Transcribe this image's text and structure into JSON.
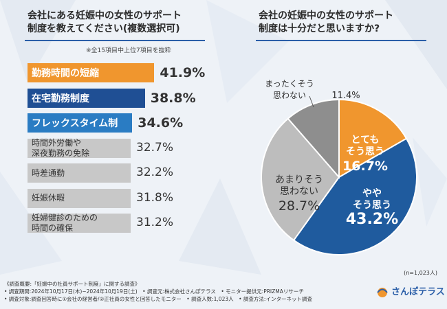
{
  "left_panel": {
    "title_line1": "会社にある妊娠中の女性のサポート",
    "title_line2": "制度を教えてください(複数選択可)",
    "note": "※全15項目中上位7項目を抜粋"
  },
  "right_panel": {
    "title_line1": "会社の妊娠中の女性のサポート",
    "title_line2": "制度は十分だと思いますか?",
    "sample": "(n=1,023人)"
  },
  "chart_data": [
    {
      "type": "bar",
      "orientation": "horizontal",
      "title": "会社にある妊娠中の女性のサポート制度を教えてください(複数選択可)",
      "categories": [
        "勤務時間の短縮",
        "在宅勤務制度",
        "フレックスタイム制",
        "時間外労働や深夜勤務の免除",
        "時差通勤",
        "妊娠休暇",
        "妊婦健診のための時間の確保"
      ],
      "category_lines": [
        [
          "勤務時間の短縮"
        ],
        [
          "在宅勤務制度"
        ],
        [
          "フレックスタイム制"
        ],
        [
          "時間外労働や",
          "深夜勤務の免除"
        ],
        [
          "時差通勤"
        ],
        [
          "妊娠休暇"
        ],
        [
          "妊婦健診のための",
          "時間の確保"
        ]
      ],
      "values": [
        41.9,
        38.8,
        34.6,
        32.7,
        32.2,
        31.8,
        31.2
      ],
      "value_labels": [
        "41.9%",
        "38.8%",
        "34.6%",
        "32.7%",
        "32.2%",
        "31.8%",
        "31.2%"
      ],
      "unit": "%",
      "colors": [
        "#f0962e",
        "#1f4f94",
        "#2a7cc3",
        "#c8c8c8",
        "#c8c8c8",
        "#c8c8c8",
        "#c8c8c8"
      ]
    },
    {
      "type": "pie",
      "title": "会社の妊娠中の女性のサポート制度は十分だと思いますか?",
      "labels": [
        "とてもそう思う",
        "ややそう思う",
        "あまりそう思わない",
        "まったくそう思わない"
      ],
      "label_lines": [
        [
          "とても",
          "そう思う"
        ],
        [
          "やや",
          "そう思う"
        ],
        [
          "あまりそう",
          "思わない"
        ],
        [
          "まったくそう",
          "思わない"
        ]
      ],
      "values": [
        16.7,
        43.2,
        28.7,
        11.4
      ],
      "value_labels": [
        "16.7%",
        "43.2%",
        "28.7%",
        "11.4%"
      ],
      "colors": [
        "#f0962e",
        "#1f5b9e",
        "#bdbdbd",
        "#8e8e8e"
      ]
    }
  ],
  "footer": {
    "line1": "《調査概要:「妊娠中の社員サポート制度」に関する調査》",
    "line2": "• 調査期間:2024年10月17日(木)~2024年10月19日(土)　• 調査元:株式会社さんぽテラス　• モニター提供元:PRIZMAリサーチ",
    "line3": "• 調査対象:調査回答時に①会社の経営者/②正社員の女性と回答したモニター　• 調査人数:1,023人　• 調査方法:インターネット調査"
  },
  "logo": {
    "text": "さんぽテラス"
  }
}
